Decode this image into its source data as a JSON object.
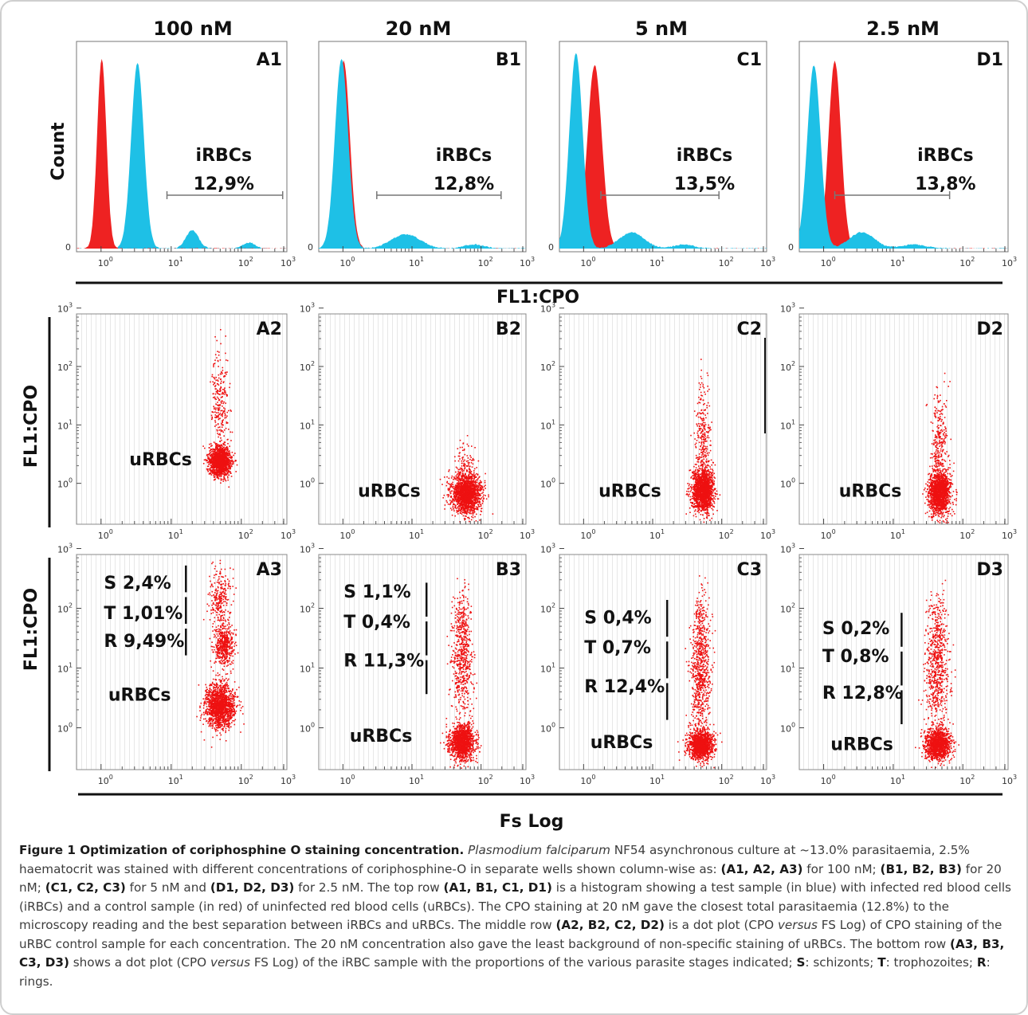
{
  "figure": {
    "concentrations": [
      "100 nM",
      "20 nM",
      "5 nM",
      "2.5 nM"
    ],
    "count_label": "Count",
    "fl1_cpo_label": "FL1:CPO",
    "fs_log_label": "Fs Log",
    "zero_label": "0",
    "tick_base": "10",
    "tick_exponents": [
      "0",
      "1",
      "2",
      "3"
    ],
    "colors": {
      "test_sample": "#1ec0e6",
      "control_sample": "#ee2222",
      "dots": "#ee1111"
    }
  },
  "histograms": [
    {
      "panel": "A1",
      "gate_label": "iRBCs",
      "gate_value": "12,9%"
    },
    {
      "panel": "B1",
      "gate_label": "iRBCs",
      "gate_value": "12,8%"
    },
    {
      "panel": "C1",
      "gate_label": "iRBCs",
      "gate_value": "13,5%"
    },
    {
      "panel": "D1",
      "gate_label": "iRBCs",
      "gate_value": "13,8%"
    }
  ],
  "control_dotplots": [
    {
      "panel": "A2",
      "label": "uRBCs"
    },
    {
      "panel": "B2",
      "label": "uRBCs"
    },
    {
      "panel": "C2",
      "label": "uRBCs"
    },
    {
      "panel": "D2",
      "label": "uRBCs"
    }
  ],
  "sample_dotplots": [
    {
      "panel": "A3",
      "s": "S 2,4%",
      "t": "T 1,01%",
      "r": "R 9,49%",
      "label": "uRBCs"
    },
    {
      "panel": "B3",
      "s": "S 1,1%",
      "t": "T 0,4%",
      "r": "R 11,3%",
      "label": "uRBCs"
    },
    {
      "panel": "C3",
      "s": "S 0,4%",
      "t": "T 0,7%",
      "r": "R 12,4%",
      "label": "uRBCs"
    },
    {
      "panel": "D3",
      "s": "S 0,2%",
      "t": "T 0,8%",
      "r": "R 12,8%",
      "label": "uRBCs"
    }
  ],
  "caption": {
    "title": "Figure 1 Optimization of coriphosphine O staining concentration.",
    "p1_italic": "Plasmodium falciparum",
    "p1": " NF54 asynchronous culture at ~13.0% parasitaemia, 2.5% haematocrit was stained with different concentrations of coriphosphine-O in separate wells shown column-wise as: ",
    "ref_a": "(A1, A2, A3)",
    "t_a": " for 100 nM; ",
    "ref_b": "(B1, B2, B3)",
    "t_b": " for 20 nM; ",
    "ref_c": "(C1, C2, C3)",
    "t_c": " for 5 nM and ",
    "ref_d": "(D1, D2, D3)",
    "t_d": " for 2.5 nM. The top row ",
    "ref_row1": "(A1, B1, C1, D1)",
    "t_row1": " is a histogram showing a test sample (in blue) with infected red blood cells (iRBCs) and a control sample (in red) of uninfected red blood cells (uRBCs). The CPO staining at 20 nM gave the closest total parasitaemia (12.8%) to the microscopy reading and the best separation between iRBCs and uRBCs. The middle row ",
    "ref_row2": "(A2, B2, C2, D2)",
    "t_row2a": " is a dot plot (CPO ",
    "versus1": "versus",
    "t_row2b": " FS Log) of CPO staining of the uRBC control sample for each concentration. The 20 nM concentration also gave the least background of non-specific staining of uRBCs. The bottom row ",
    "ref_row3": "(A3, B3, C3, D3)",
    "t_row3a": " shows a dot plot (CPO ",
    "versus2": "versus",
    "t_row3b": " FS Log) of the iRBC sample with the proportions of the various parasite stages indicated; ",
    "s_key": "S",
    "s_def": ": schizonts; ",
    "t_key": "T",
    "t_def": ": trophozoites; ",
    "r_key": "R",
    "r_def": ": rings."
  }
}
